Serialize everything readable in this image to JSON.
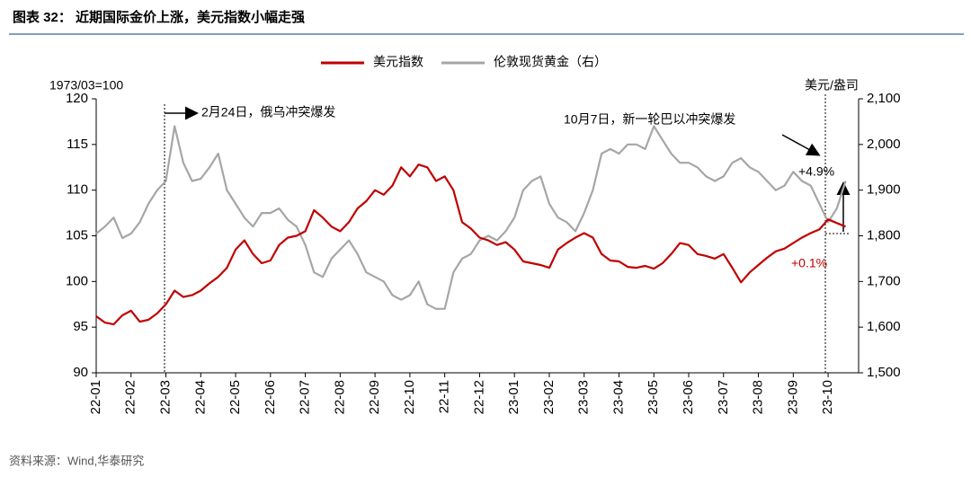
{
  "chart_data": {
    "type": "line",
    "title": "图表 32：  近期国际金价上涨，美元指数小幅走强",
    "source": "资料来源：Wind,华泰研究",
    "y_label": "1973/03=100",
    "y2_label": "美元/盎司",
    "annotations": [
      "2月24日，俄乌冲突爆发",
      "10月7日，新一轮巴以冲突爆发",
      "+4.9%",
      "+0.1%"
    ],
    "legend": "top",
    "categories": [
      "22-01",
      null,
      null,
      null,
      "22-02",
      null,
      null,
      null,
      "22-03",
      null,
      null,
      null,
      "22-04",
      null,
      null,
      null,
      "22-05",
      null,
      null,
      null,
      "22-06",
      null,
      null,
      null,
      "22-07",
      null,
      null,
      null,
      "22-08",
      null,
      null,
      null,
      "22-09",
      null,
      null,
      null,
      "22-10",
      null,
      null,
      null,
      "22-11",
      null,
      null,
      null,
      "22-12",
      null,
      null,
      null,
      "23-01",
      null,
      null,
      null,
      "23-02",
      null,
      null,
      null,
      "23-03",
      null,
      null,
      null,
      "23-04",
      null,
      null,
      null,
      "23-05",
      null,
      null,
      null,
      "23-06",
      null,
      null,
      null,
      "23-07",
      null,
      null,
      null,
      "23-08",
      null,
      null,
      null,
      "23-09",
      null,
      null,
      null,
      "23-10",
      null,
      null
    ],
    "series": [
      {
        "name": "美元指数",
        "color": "#c00000",
        "values": [
          96.2,
          95.5,
          95.3,
          96.3,
          96.8,
          95.6,
          95.8,
          96.5,
          97.5,
          99.0,
          98.3,
          98.5,
          99.0,
          99.8,
          100.5,
          101.5,
          103.5,
          104.5,
          103.0,
          102.0,
          102.3,
          104.0,
          104.8,
          105.0,
          105.5,
          107.8,
          107.0,
          106.0,
          105.5,
          106.5,
          108.0,
          108.8,
          110.0,
          109.5,
          110.5,
          112.5,
          111.5,
          112.8,
          112.5,
          111.0,
          111.5,
          110.0,
          106.5,
          105.8,
          104.8,
          104.5,
          104.0,
          104.3,
          103.5,
          102.2,
          102.0,
          101.8,
          101.5,
          103.5,
          104.2,
          104.8,
          105.3,
          104.8,
          103.0,
          102.3,
          102.2,
          101.6,
          101.5,
          101.7,
          101.4,
          102.0,
          103.0,
          104.2,
          104.0,
          103.0,
          102.8,
          102.5,
          103.0,
          101.5,
          99.9,
          101.0,
          101.8,
          102.6,
          103.3,
          103.6,
          104.2,
          104.8,
          105.3,
          105.7,
          106.8,
          106.4,
          106.0
        ]
      },
      {
        "name": "伦敦现货黄金（右）",
        "color": "#a6a6a6",
        "axis": "y2",
        "values": [
          1805,
          1820,
          1840,
          1795,
          1805,
          1830,
          1870,
          1900,
          1920,
          2040,
          1960,
          1920,
          1925,
          1950,
          1980,
          1900,
          1870,
          1840,
          1820,
          1850,
          1850,
          1860,
          1835,
          1820,
          1780,
          1720,
          1710,
          1750,
          1770,
          1790,
          1760,
          1720,
          1710,
          1700,
          1670,
          1660,
          1670,
          1700,
          1650,
          1640,
          1640,
          1720,
          1750,
          1760,
          1790,
          1800,
          1790,
          1810,
          1840,
          1900,
          1920,
          1930,
          1870,
          1840,
          1830,
          1810,
          1850,
          1900,
          1980,
          1990,
          1980,
          2000,
          2000,
          1990,
          2040,
          2010,
          1980,
          1960,
          1960,
          1950,
          1930,
          1920,
          1930,
          1960,
          1970,
          1950,
          1940,
          1920,
          1900,
          1910,
          1940,
          1920,
          1910,
          1870,
          1830,
          1860,
          1920
        ]
      }
    ],
    "ylim": [
      90,
      120
    ],
    "yticks": [
      90,
      95,
      100,
      105,
      110,
      115,
      120
    ],
    "y2lim": [
      1500,
      2100
    ],
    "y2ticks": [
      {
        "value": 1500,
        "label": "1,500"
      },
      {
        "value": 1600,
        "label": "1,600"
      },
      {
        "value": 1700,
        "label": "1,700"
      },
      {
        "value": 1800,
        "label": "1,800"
      },
      {
        "value": 1900,
        "label": "1,900"
      },
      {
        "value": 2000,
        "label": "2,000"
      },
      {
        "value": 2100,
        "label": "2,100"
      }
    ]
  }
}
